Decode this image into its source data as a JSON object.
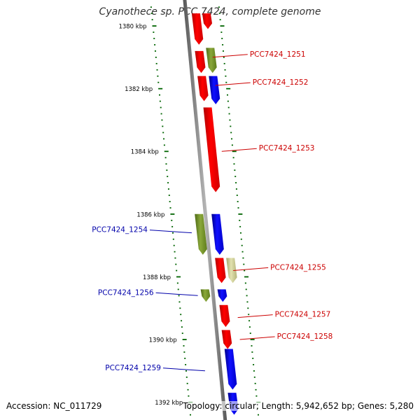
{
  "title": "Cyanothece sp. PCC 7424, complete genome",
  "footer": {
    "accession": "Accession: NC_011729",
    "summary": "Topology: circular; Length: 5,942,652 bp; Genes: 5,280"
  },
  "colors": {
    "forward_cds": "#ff0000",
    "reverse_cds": "#0000ff",
    "other_gene": "#6b8e23",
    "pale_gene": "#c8c88a",
    "tick": "#006400",
    "backbone": "#808080",
    "forward_label": "#cc0000",
    "reverse_label": "#0000aa"
  },
  "ruler": [
    {
      "label": "1380 kbp",
      "kbp": 1380
    },
    {
      "label": "1382 kbp",
      "kbp": 1382
    },
    {
      "label": "1384 kbp",
      "kbp": 1384
    },
    {
      "label": "1386 kbp",
      "kbp": 1386
    },
    {
      "label": "1388 kbp",
      "kbp": 1388
    },
    {
      "label": "1390 kbp",
      "kbp": 1390
    },
    {
      "label": "1392 kbp",
      "kbp": 1392
    }
  ],
  "features": [
    {
      "strand": "forward",
      "start_kbp": 1379.6,
      "end_kbp": 1380.6,
      "type": "cds"
    },
    {
      "strand": "forward",
      "start_kbp": 1380.8,
      "end_kbp": 1381.5,
      "type": "cds"
    },
    {
      "strand": "forward",
      "start_kbp": 1381.6,
      "end_kbp": 1382.4,
      "type": "cds"
    },
    {
      "strand": "forward",
      "start_kbp": 1382.6,
      "end_kbp": 1385.3,
      "type": "cds"
    },
    {
      "strand": "forward",
      "start_kbp": 1387.4,
      "end_kbp": 1388.2,
      "type": "cds"
    },
    {
      "strand": "forward",
      "start_kbp": 1388.9,
      "end_kbp": 1389.6,
      "type": "cds"
    },
    {
      "strand": "forward",
      "start_kbp": 1389.7,
      "end_kbp": 1390.3,
      "type": "cds"
    },
    {
      "strand": "forward",
      "start_kbp": 1379.6,
      "end_kbp": 1380.1,
      "type": "cds"
    },
    {
      "strand": "forward",
      "start_kbp": 1380.7,
      "end_kbp": 1381.5,
      "type": "other"
    },
    {
      "strand": "forward",
      "start_kbp": 1381.6,
      "end_kbp": 1382.5,
      "type": "blue"
    },
    {
      "strand": "forward",
      "start_kbp": 1387.4,
      "end_kbp": 1388.2,
      "type": "pale"
    },
    {
      "strand": "reverse",
      "start_kbp": 1386.0,
      "end_kbp": 1387.3,
      "type": "other"
    },
    {
      "strand": "reverse",
      "start_kbp": 1386.0,
      "end_kbp": 1387.3,
      "type": "cds"
    },
    {
      "strand": "reverse",
      "start_kbp": 1388.4,
      "end_kbp": 1388.8,
      "type": "other"
    },
    {
      "strand": "reverse",
      "start_kbp": 1388.4,
      "end_kbp": 1388.8,
      "type": "cds"
    },
    {
      "strand": "reverse",
      "start_kbp": 1390.3,
      "end_kbp": 1391.6,
      "type": "cds"
    },
    {
      "strand": "reverse",
      "start_kbp": 1391.7,
      "end_kbp": 1392.4,
      "type": "cds"
    }
  ],
  "labels": [
    {
      "text": "PCC7424_1251",
      "side": "right",
      "kbp": 1381.0
    },
    {
      "text": "PCC7424_1252",
      "side": "right",
      "kbp": 1381.9
    },
    {
      "text": "PCC7424_1253",
      "side": "right",
      "kbp": 1384.0
    },
    {
      "text": "PCC7424_1254",
      "side": "left",
      "kbp": 1386.6
    },
    {
      "text": "PCC7424_1255",
      "side": "right",
      "kbp": 1387.8
    },
    {
      "text": "PCC7424_1256",
      "side": "left",
      "kbp": 1388.6
    },
    {
      "text": "PCC7424_1257",
      "side": "right",
      "kbp": 1389.3
    },
    {
      "text": "PCC7424_1258",
      "side": "right",
      "kbp": 1390.0
    },
    {
      "text": "PCC7424_1259",
      "side": "left",
      "kbp": 1391.0
    }
  ]
}
